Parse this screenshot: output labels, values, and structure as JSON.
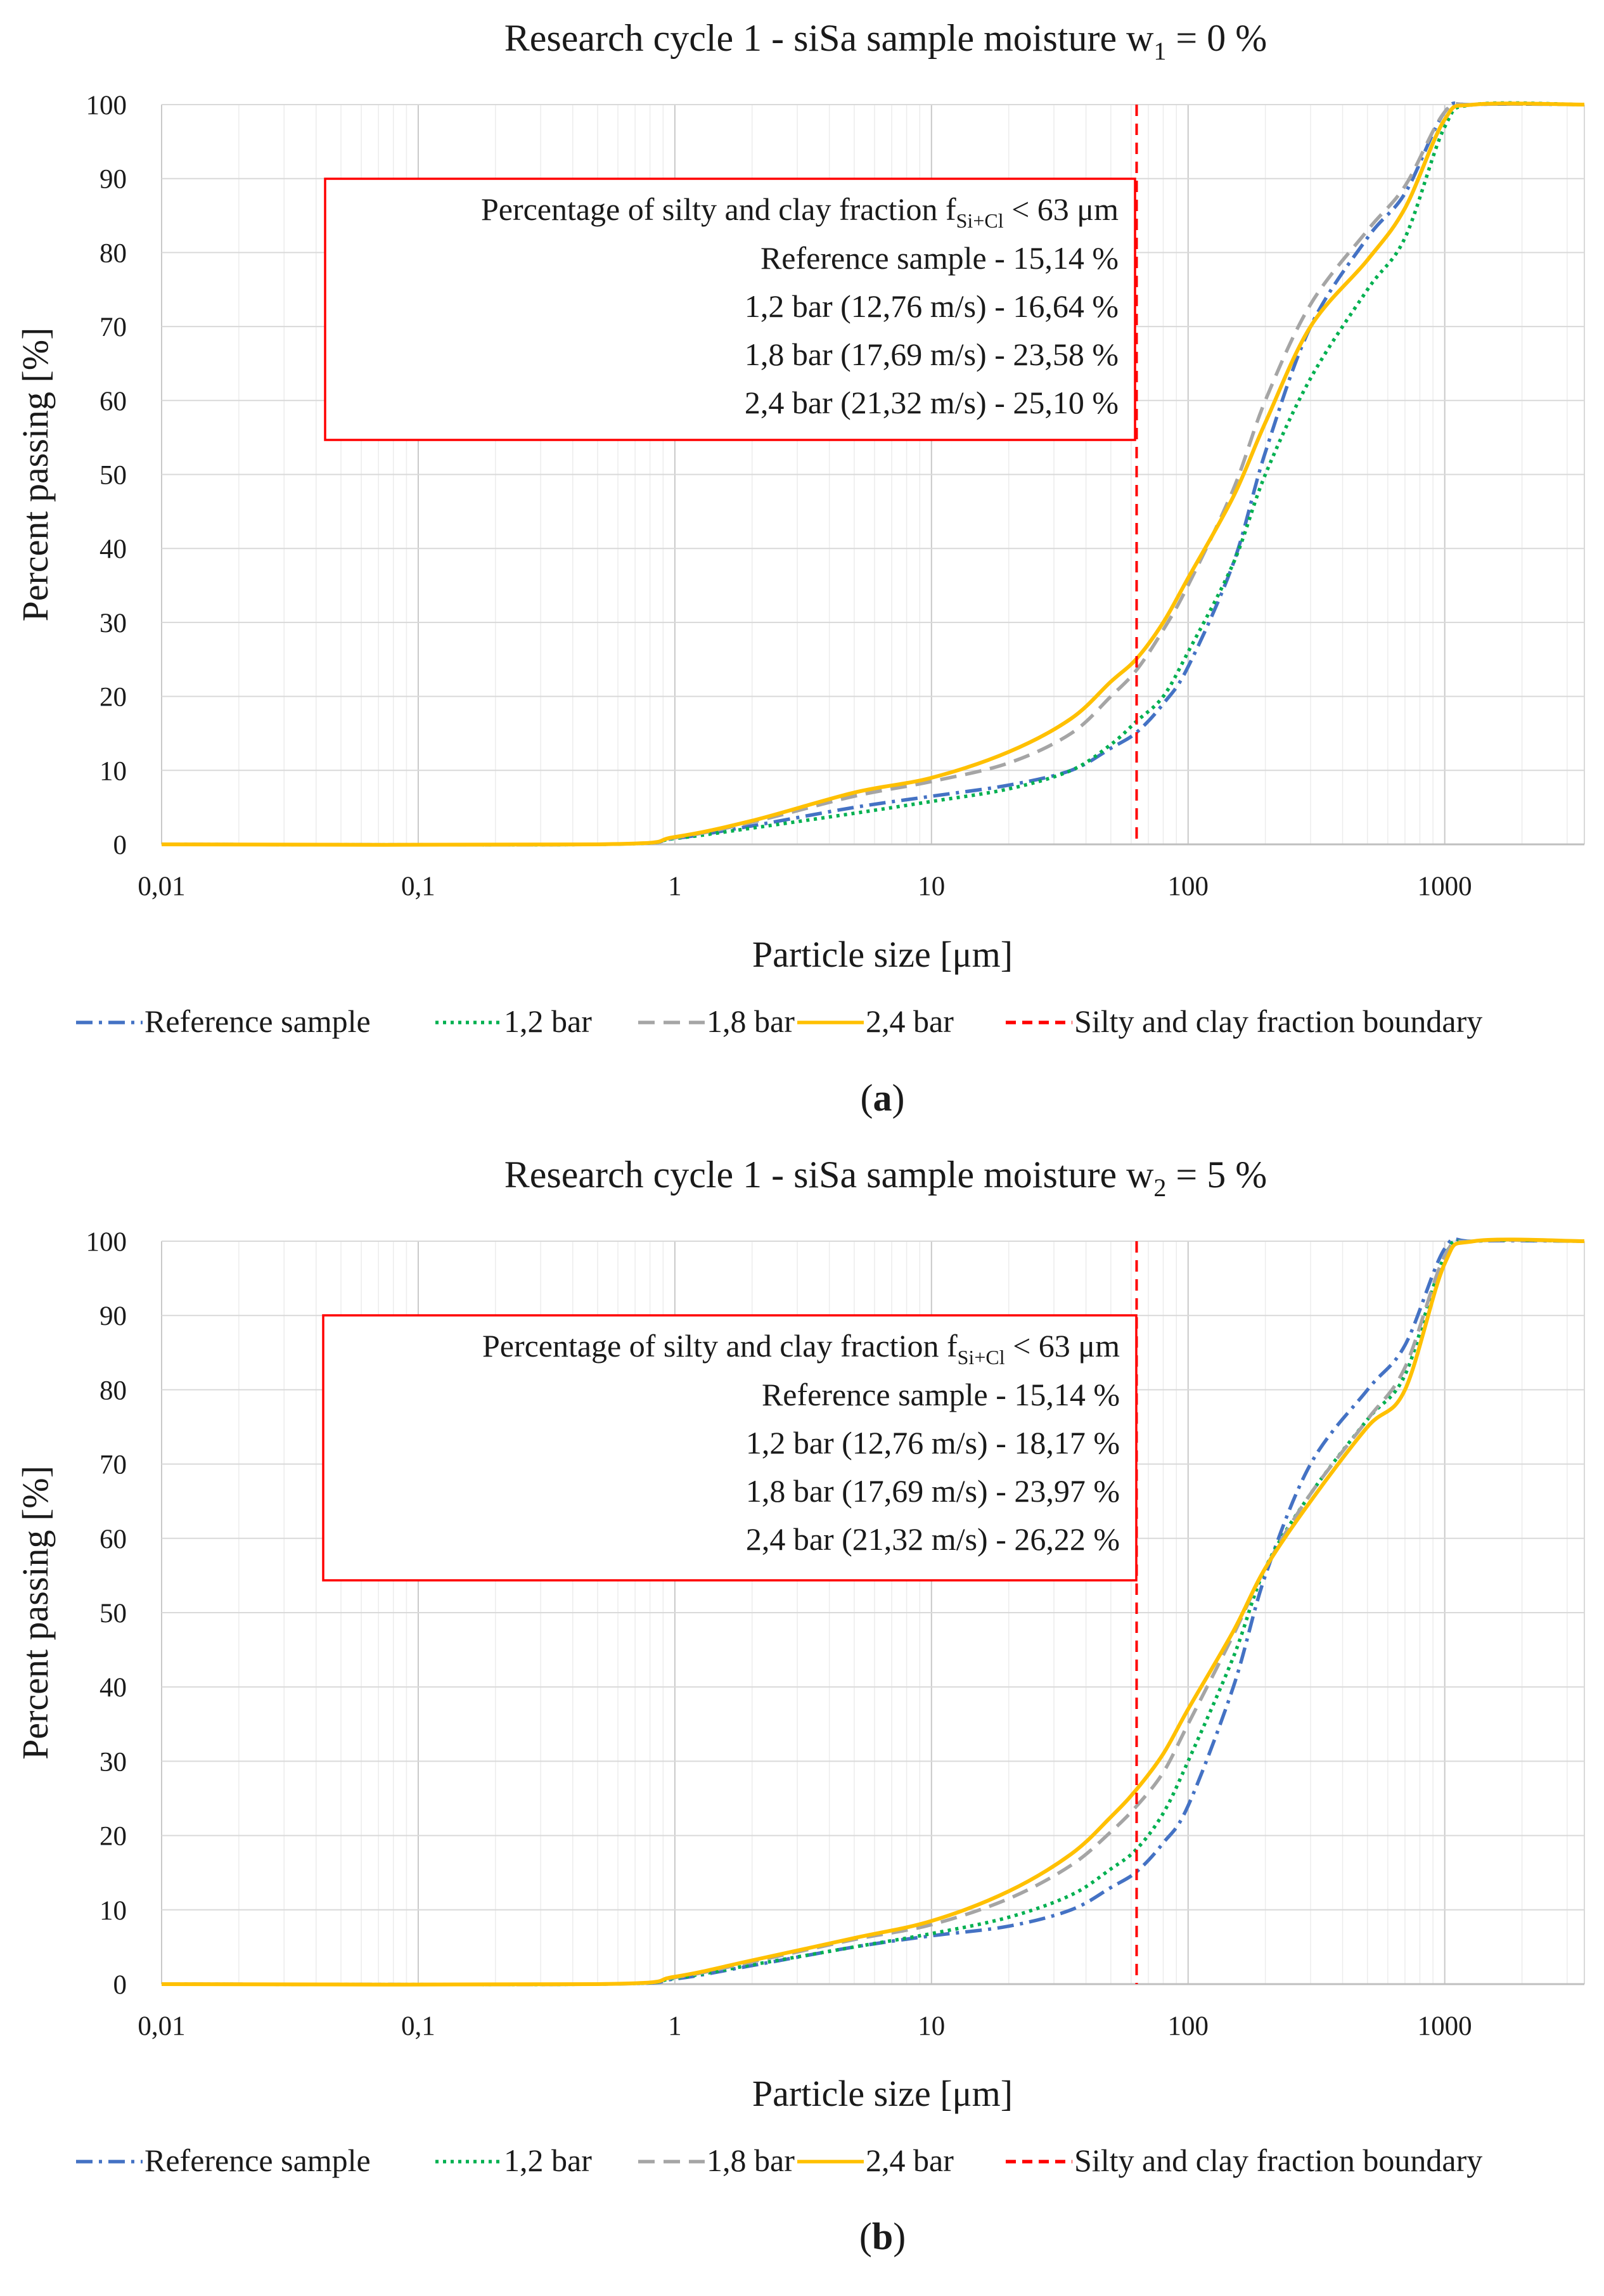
{
  "chart_data": [
    {
      "type": "line",
      "panel_label": "a",
      "title": {
        "text": "Research cycle 1 - siSa sample moisture w",
        "sub": "1",
        "suffix": " = 0 %"
      },
      "xlabel": "Particle size [μm]",
      "ylabel": "Percent passing [%]",
      "x_scale": "log",
      "xlim": [
        0.01,
        3500
      ],
      "ylim": [
        0,
        100
      ],
      "x_ticks": [
        0.01,
        0.1,
        1,
        10,
        100,
        1000
      ],
      "x_tick_labels": [
        "0,01",
        "0,1",
        "1",
        "10",
        "100",
        "1000"
      ],
      "y_ticks": [
        0,
        10,
        20,
        30,
        40,
        50,
        60,
        70,
        80,
        90,
        100
      ],
      "y_tick_labels": [
        "0",
        "10",
        "20",
        "30",
        "40",
        "50",
        "60",
        "70",
        "80",
        "90",
        "100"
      ],
      "grid": true,
      "boundary_x": 63,
      "annotation": {
        "heading_pre": "Percentage of silty and clay fraction f",
        "heading_sub": "Si+Cl",
        "heading_post": " < 63 μm",
        "lines": [
          "Reference sample - 15,14 %",
          "1,2 bar (12,76 m/s) - 16,64 %",
          "1,8 bar (17,69 m/s) - 23,58 %",
          "2,4 bar (21,32 m/s) - 25,10 %"
        ]
      },
      "series": [
        {
          "name": "Reference sample",
          "color": "#4472C4",
          "dash": "dashdot",
          "x": [
            0.01,
            0.5,
            1,
            2,
            5,
            10,
            20,
            35,
            50,
            63,
            80,
            100,
            150,
            200,
            300,
            500,
            700,
            1000,
            1300,
            3500
          ],
          "y": [
            0,
            0,
            0.8,
            2.5,
            5,
            6.5,
            8,
            10,
            13,
            15.14,
            19,
            24,
            38,
            53,
            70,
            82,
            88,
            99,
            100,
            100
          ]
        },
        {
          "name": "1,2 bar",
          "color": "#00B050",
          "dash": "dot",
          "x": [
            0.01,
            0.5,
            1,
            2,
            5,
            10,
            20,
            35,
            50,
            63,
            80,
            100,
            150,
            200,
            300,
            500,
            700,
            1000,
            1300,
            3500
          ],
          "y": [
            0,
            0,
            0.8,
            2.2,
            4.2,
            5.8,
            7.5,
            10,
            13.5,
            16.64,
            20,
            26,
            38,
            50,
            63,
            75,
            82,
            97,
            100,
            100
          ]
        },
        {
          "name": "1,8 bar",
          "color": "#A5A5A5",
          "dash": "dash",
          "x": [
            0.01,
            0.5,
            1,
            2,
            5,
            10,
            20,
            35,
            50,
            63,
            80,
            100,
            150,
            200,
            300,
            500,
            700,
            1000,
            1300,
            3500
          ],
          "y": [
            0,
            0,
            0.9,
            3,
            6.5,
            8.5,
            11,
            15,
            20,
            23.58,
            29,
            35,
            48,
            60,
            73,
            83,
            89,
            99,
            100,
            100
          ]
        },
        {
          "name": "2,4 bar",
          "color": "#FFC000",
          "dash": "solid",
          "x": [
            0.01,
            0.5,
            1,
            2,
            5,
            10,
            20,
            35,
            50,
            63,
            80,
            100,
            150,
            200,
            300,
            500,
            700,
            1000,
            1300,
            3500
          ],
          "y": [
            0,
            0,
            1,
            3.2,
            7,
            9,
            12.5,
            17,
            22,
            25.1,
            30,
            36,
            47,
            57,
            70,
            79,
            86,
            98,
            100,
            100
          ]
        }
      ],
      "legend": [
        {
          "label": "Reference sample",
          "color": "#4472C4",
          "dash": "dashdot"
        },
        {
          "label": "1,2 bar",
          "color": "#00B050",
          "dash": "dot"
        },
        {
          "label": "1,8 bar",
          "color": "#A5A5A5",
          "dash": "dash"
        },
        {
          "label": "2,4 bar",
          "color": "#FFC000",
          "dash": "solid"
        },
        {
          "label": "Silty and clay fraction boundary",
          "color": "#FF0000",
          "dash": "dash"
        }
      ]
    },
    {
      "type": "line",
      "panel_label": "b",
      "title": {
        "text": "Research cycle 1 - siSa sample moisture w",
        "sub": "2",
        "suffix": " = 5 %"
      },
      "xlabel": "Particle size [μm]",
      "ylabel": "Percent passing [%]",
      "x_scale": "log",
      "xlim": [
        0.01,
        3500
      ],
      "ylim": [
        0,
        100
      ],
      "x_ticks": [
        0.01,
        0.1,
        1,
        10,
        100,
        1000
      ],
      "x_tick_labels": [
        "0,01",
        "0,1",
        "1",
        "10",
        "100",
        "1000"
      ],
      "y_ticks": [
        0,
        10,
        20,
        30,
        40,
        50,
        60,
        70,
        80,
        90,
        100
      ],
      "y_tick_labels": [
        "0",
        "10",
        "20",
        "30",
        "40",
        "50",
        "60",
        "70",
        "80",
        "90",
        "100"
      ],
      "grid": true,
      "boundary_x": 63,
      "annotation": {
        "heading_pre": "Percentage of silty and clay fraction f",
        "heading_sub": "Si+Cl",
        "heading_post": " < 63 μm",
        "lines": [
          "Reference sample - 15,14 %",
          "1,2 bar (12,76 m/s) - 18,17 %",
          "1,8 bar (17,69 m/s) - 23,97 %",
          "2,4 bar (21,32 m/s) - 26,22 %"
        ]
      },
      "series": [
        {
          "name": "Reference sample",
          "color": "#4472C4",
          "dash": "dashdot",
          "x": [
            0.01,
            0.5,
            1,
            2,
            5,
            10,
            20,
            35,
            50,
            63,
            80,
            100,
            150,
            200,
            300,
            500,
            700,
            1000,
            1300,
            3500
          ],
          "y": [
            0,
            0,
            0.7,
            2.5,
            5,
            6.5,
            7.8,
            10,
            13,
            15.14,
            19,
            24,
            40,
            55,
            70,
            80,
            86,
            99,
            100,
            100
          ]
        },
        {
          "name": "1,2 bar",
          "color": "#00B050",
          "dash": "dot",
          "x": [
            0.01,
            0.5,
            1,
            2,
            5,
            10,
            20,
            35,
            50,
            63,
            80,
            100,
            150,
            200,
            300,
            500,
            700,
            1000,
            1300,
            3500
          ],
          "y": [
            0,
            0,
            0.8,
            2.6,
            5,
            6.8,
            9,
            12,
            15.5,
            18.17,
            23,
            30,
            44,
            56,
            66,
            76,
            82,
            98,
            100,
            100
          ]
        },
        {
          "name": "1,8 bar",
          "color": "#A5A5A5",
          "dash": "dash",
          "x": [
            0.01,
            0.5,
            1,
            2,
            5,
            10,
            20,
            35,
            50,
            63,
            80,
            100,
            150,
            200,
            300,
            500,
            700,
            1000,
            1300,
            3500
          ],
          "y": [
            0,
            0,
            0.9,
            3,
            6,
            8,
            11.5,
            16,
            20.5,
            23.97,
            28.5,
            35,
            47,
            56,
            66,
            76,
            83,
            98,
            100,
            100
          ]
        },
        {
          "name": "2,4 bar",
          "color": "#FFC000",
          "dash": "solid",
          "x": [
            0.01,
            0.5,
            1,
            2,
            5,
            10,
            20,
            35,
            50,
            63,
            80,
            100,
            150,
            200,
            300,
            500,
            700,
            1000,
            1300,
            3500
          ],
          "y": [
            0,
            0,
            1,
            3.2,
            6.2,
            8.5,
            12.5,
            17.5,
            22.5,
            26.22,
            31,
            37,
            47.5,
            56,
            65,
            75,
            80,
            97,
            100,
            100
          ]
        }
      ],
      "legend": [
        {
          "label": "Reference sample",
          "color": "#4472C4",
          "dash": "dashdot"
        },
        {
          "label": "1,2 bar",
          "color": "#00B050",
          "dash": "dot"
        },
        {
          "label": "1,8 bar",
          "color": "#A5A5A5",
          "dash": "dash"
        },
        {
          "label": "2,4 bar",
          "color": "#FFC000",
          "dash": "solid"
        },
        {
          "label": "Silty and clay fraction boundary",
          "color": "#FF0000",
          "dash": "dash"
        }
      ]
    }
  ]
}
